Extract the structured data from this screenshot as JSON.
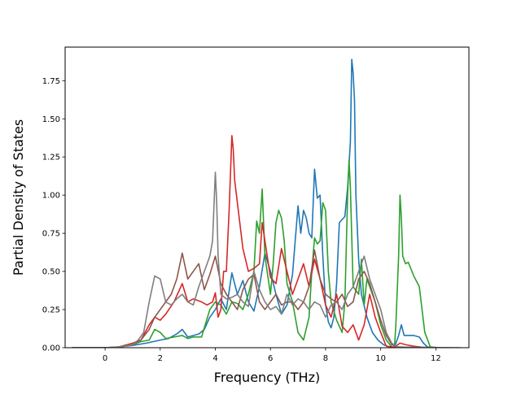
{
  "chart_data": {
    "type": "line",
    "title": "",
    "xlabel": "Frequency (THz)",
    "ylabel": "Partial Density of States",
    "xlim": [
      -1.45,
      13.2
    ],
    "ylim": [
      0,
      1.97
    ],
    "xticks": [
      0,
      2,
      4,
      6,
      8,
      10,
      12
    ],
    "yticks": [
      0.0,
      0.25,
      0.5,
      0.75,
      1.0,
      1.25,
      1.5,
      1.75
    ],
    "grid": false,
    "legend": null,
    "series": [
      {
        "color": "#1f77b4",
        "points": [
          [
            -1.2,
            0
          ],
          [
            0,
            0
          ],
          [
            0.5,
            0.005
          ],
          [
            1.0,
            0.015
          ],
          [
            1.5,
            0.03
          ],
          [
            2.0,
            0.05
          ],
          [
            2.3,
            0.06
          ],
          [
            2.6,
            0.09
          ],
          [
            2.8,
            0.12
          ],
          [
            3.0,
            0.07
          ],
          [
            3.2,
            0.08
          ],
          [
            3.4,
            0.09
          ],
          [
            3.6,
            0.12
          ],
          [
            3.8,
            0.2
          ],
          [
            4.0,
            0.25
          ],
          [
            4.2,
            0.32
          ],
          [
            4.4,
            0.25
          ],
          [
            4.6,
            0.49
          ],
          [
            4.8,
            0.35
          ],
          [
            5.0,
            0.44
          ],
          [
            5.2,
            0.3
          ],
          [
            5.4,
            0.24
          ],
          [
            5.6,
            0.4
          ],
          [
            5.8,
            0.62
          ],
          [
            6.0,
            0.5
          ],
          [
            6.2,
            0.35
          ],
          [
            6.4,
            0.22
          ],
          [
            6.6,
            0.28
          ],
          [
            6.8,
            0.48
          ],
          [
            7.0,
            0.93
          ],
          [
            7.1,
            0.75
          ],
          [
            7.2,
            0.9
          ],
          [
            7.3,
            0.85
          ],
          [
            7.4,
            0.75
          ],
          [
            7.5,
            0.72
          ],
          [
            7.6,
            1.17
          ],
          [
            7.7,
            0.98
          ],
          [
            7.8,
            1.0
          ],
          [
            7.9,
            0.6
          ],
          [
            8.0,
            0.28
          ],
          [
            8.1,
            0.17
          ],
          [
            8.2,
            0.13
          ],
          [
            8.3,
            0.2
          ],
          [
            8.4,
            0.42
          ],
          [
            8.5,
            0.82
          ],
          [
            8.6,
            0.84
          ],
          [
            8.7,
            0.86
          ],
          [
            8.8,
            1.05
          ],
          [
            8.9,
            1.35
          ],
          [
            8.95,
            1.89
          ],
          [
            9.0,
            1.8
          ],
          [
            9.05,
            1.62
          ],
          [
            9.1,
            1.0
          ],
          [
            9.2,
            0.58
          ],
          [
            9.3,
            0.35
          ],
          [
            9.5,
            0.2
          ],
          [
            9.7,
            0.1
          ],
          [
            9.9,
            0.05
          ],
          [
            10.1,
            0.02
          ],
          [
            10.3,
            0.005
          ],
          [
            10.5,
            0.003
          ],
          [
            10.65,
            0.08
          ],
          [
            10.75,
            0.15
          ],
          [
            10.85,
            0.08
          ],
          [
            11.0,
            0.08
          ],
          [
            11.2,
            0.08
          ],
          [
            11.4,
            0.07
          ],
          [
            11.55,
            0.03
          ],
          [
            11.7,
            0.005
          ],
          [
            12.1,
            0
          ]
        ]
      },
      {
        "color": "#2ca02c",
        "points": [
          [
            -1.2,
            0
          ],
          [
            0,
            0
          ],
          [
            0.5,
            0.003
          ],
          [
            1.0,
            0.02
          ],
          [
            1.3,
            0.04
          ],
          [
            1.6,
            0.05
          ],
          [
            1.8,
            0.12
          ],
          [
            2.0,
            0.1
          ],
          [
            2.2,
            0.06
          ],
          [
            2.5,
            0.07
          ],
          [
            2.8,
            0.08
          ],
          [
            3.0,
            0.06
          ],
          [
            3.2,
            0.07
          ],
          [
            3.5,
            0.07
          ],
          [
            3.8,
            0.25
          ],
          [
            4.0,
            0.3
          ],
          [
            4.2,
            0.28
          ],
          [
            4.4,
            0.22
          ],
          [
            4.6,
            0.3
          ],
          [
            4.8,
            0.29
          ],
          [
            5.0,
            0.25
          ],
          [
            5.2,
            0.35
          ],
          [
            5.4,
            0.5
          ],
          [
            5.5,
            0.83
          ],
          [
            5.6,
            0.75
          ],
          [
            5.7,
            1.04
          ],
          [
            5.8,
            0.6
          ],
          [
            6.0,
            0.35
          ],
          [
            6.1,
            0.55
          ],
          [
            6.2,
            0.82
          ],
          [
            6.3,
            0.9
          ],
          [
            6.4,
            0.85
          ],
          [
            6.5,
            0.7
          ],
          [
            6.6,
            0.42
          ],
          [
            6.8,
            0.3
          ],
          [
            7.0,
            0.1
          ],
          [
            7.2,
            0.05
          ],
          [
            7.4,
            0.2
          ],
          [
            7.5,
            0.5
          ],
          [
            7.6,
            0.72
          ],
          [
            7.7,
            0.68
          ],
          [
            7.8,
            0.7
          ],
          [
            7.9,
            0.95
          ],
          [
            8.0,
            0.9
          ],
          [
            8.1,
            0.5
          ],
          [
            8.2,
            0.3
          ],
          [
            8.4,
            0.18
          ],
          [
            8.6,
            0.1
          ],
          [
            8.7,
            0.3
          ],
          [
            8.8,
            1.0
          ],
          [
            8.85,
            1.23
          ],
          [
            8.9,
            1.05
          ],
          [
            9.0,
            0.4
          ],
          [
            9.2,
            0.35
          ],
          [
            9.3,
            0.58
          ],
          [
            9.4,
            0.28
          ],
          [
            9.5,
            0.45
          ],
          [
            9.6,
            0.4
          ],
          [
            9.8,
            0.3
          ],
          [
            10.0,
            0.15
          ],
          [
            10.2,
            0.05
          ],
          [
            10.4,
            0.005
          ],
          [
            10.5,
            0.003
          ],
          [
            10.55,
            0.15
          ],
          [
            10.65,
            0.6
          ],
          [
            10.7,
            1.0
          ],
          [
            10.75,
            0.85
          ],
          [
            10.8,
            0.6
          ],
          [
            10.9,
            0.55
          ],
          [
            11.0,
            0.56
          ],
          [
            11.2,
            0.47
          ],
          [
            11.4,
            0.4
          ],
          [
            11.5,
            0.25
          ],
          [
            11.6,
            0.1
          ],
          [
            11.8,
            0.005
          ],
          [
            12.1,
            0
          ]
        ]
      },
      {
        "color": "#d62728",
        "points": [
          [
            -1.2,
            0
          ],
          [
            0,
            0
          ],
          [
            0.5,
            0.005
          ],
          [
            1.0,
            0.03
          ],
          [
            1.3,
            0.05
          ],
          [
            1.6,
            0.15
          ],
          [
            1.8,
            0.2
          ],
          [
            2.0,
            0.18
          ],
          [
            2.2,
            0.22
          ],
          [
            2.5,
            0.3
          ],
          [
            2.8,
            0.42
          ],
          [
            3.0,
            0.3
          ],
          [
            3.2,
            0.32
          ],
          [
            3.5,
            0.3
          ],
          [
            3.7,
            0.28
          ],
          [
            3.9,
            0.3
          ],
          [
            4.0,
            0.36
          ],
          [
            4.1,
            0.2
          ],
          [
            4.2,
            0.25
          ],
          [
            4.3,
            0.5
          ],
          [
            4.4,
            0.5
          ],
          [
            4.5,
            0.9
          ],
          [
            4.6,
            1.39
          ],
          [
            4.65,
            1.3
          ],
          [
            4.7,
            1.1
          ],
          [
            4.8,
            0.95
          ],
          [
            5.0,
            0.65
          ],
          [
            5.2,
            0.5
          ],
          [
            5.4,
            0.52
          ],
          [
            5.6,
            0.55
          ],
          [
            5.7,
            0.82
          ],
          [
            5.8,
            0.7
          ],
          [
            6.0,
            0.46
          ],
          [
            6.2,
            0.42
          ],
          [
            6.4,
            0.65
          ],
          [
            6.6,
            0.5
          ],
          [
            6.8,
            0.35
          ],
          [
            7.0,
            0.45
          ],
          [
            7.2,
            0.55
          ],
          [
            7.4,
            0.4
          ],
          [
            7.6,
            0.58
          ],
          [
            7.8,
            0.45
          ],
          [
            8.0,
            0.28
          ],
          [
            8.2,
            0.2
          ],
          [
            8.4,
            0.35
          ],
          [
            8.6,
            0.14
          ],
          [
            8.8,
            0.1
          ],
          [
            9.0,
            0.15
          ],
          [
            9.2,
            0.05
          ],
          [
            9.4,
            0.15
          ],
          [
            9.6,
            0.35
          ],
          [
            9.8,
            0.2
          ],
          [
            10.0,
            0.1
          ],
          [
            10.2,
            0.01
          ],
          [
            10.5,
            0.003
          ],
          [
            10.7,
            0.03
          ],
          [
            10.9,
            0.02
          ],
          [
            11.2,
            0.01
          ],
          [
            11.5,
            0.003
          ],
          [
            12.1,
            0
          ]
        ]
      },
      {
        "color": "#8c564b",
        "points": [
          [
            -1.2,
            0
          ],
          [
            0,
            0
          ],
          [
            0.5,
            0.005
          ],
          [
            1.0,
            0.02
          ],
          [
            1.3,
            0.05
          ],
          [
            1.6,
            0.12
          ],
          [
            1.8,
            0.2
          ],
          [
            2.0,
            0.25
          ],
          [
            2.2,
            0.3
          ],
          [
            2.4,
            0.35
          ],
          [
            2.6,
            0.45
          ],
          [
            2.8,
            0.62
          ],
          [
            3.0,
            0.45
          ],
          [
            3.2,
            0.5
          ],
          [
            3.4,
            0.55
          ],
          [
            3.6,
            0.38
          ],
          [
            3.8,
            0.48
          ],
          [
            4.0,
            0.6
          ],
          [
            4.2,
            0.42
          ],
          [
            4.4,
            0.35
          ],
          [
            4.6,
            0.3
          ],
          [
            4.8,
            0.25
          ],
          [
            5.0,
            0.38
          ],
          [
            5.2,
            0.45
          ],
          [
            5.4,
            0.48
          ],
          [
            5.6,
            0.3
          ],
          [
            5.8,
            0.25
          ],
          [
            6.0,
            0.3
          ],
          [
            6.2,
            0.35
          ],
          [
            6.4,
            0.28
          ],
          [
            6.6,
            0.3
          ],
          [
            6.8,
            0.3
          ],
          [
            7.0,
            0.25
          ],
          [
            7.2,
            0.3
          ],
          [
            7.4,
            0.4
          ],
          [
            7.6,
            0.64
          ],
          [
            7.8,
            0.45
          ],
          [
            8.0,
            0.35
          ],
          [
            8.2,
            0.32
          ],
          [
            8.4,
            0.3
          ],
          [
            8.6,
            0.35
          ],
          [
            8.8,
            0.27
          ],
          [
            9.0,
            0.3
          ],
          [
            9.2,
            0.45
          ],
          [
            9.4,
            0.5
          ],
          [
            9.6,
            0.42
          ],
          [
            9.8,
            0.3
          ],
          [
            10.0,
            0.18
          ],
          [
            10.2,
            0.08
          ],
          [
            10.4,
            0.02
          ],
          [
            10.6,
            0.005
          ],
          [
            11.0,
            0.003
          ],
          [
            12.1,
            0
          ]
        ]
      },
      {
        "color": "#7f7f7f",
        "points": [
          [
            -1.2,
            0
          ],
          [
            0,
            0
          ],
          [
            0.5,
            0.005
          ],
          [
            1.0,
            0.02
          ],
          [
            1.2,
            0.05
          ],
          [
            1.4,
            0.1
          ],
          [
            1.6,
            0.3
          ],
          [
            1.8,
            0.47
          ],
          [
            2.0,
            0.45
          ],
          [
            2.2,
            0.3
          ],
          [
            2.4,
            0.28
          ],
          [
            2.6,
            0.32
          ],
          [
            2.8,
            0.35
          ],
          [
            3.0,
            0.3
          ],
          [
            3.2,
            0.28
          ],
          [
            3.4,
            0.4
          ],
          [
            3.6,
            0.5
          ],
          [
            3.8,
            0.6
          ],
          [
            3.9,
            0.7
          ],
          [
            4.0,
            1.15
          ],
          [
            4.05,
            0.95
          ],
          [
            4.1,
            0.6
          ],
          [
            4.2,
            0.35
          ],
          [
            4.4,
            0.32
          ],
          [
            4.6,
            0.33
          ],
          [
            4.8,
            0.35
          ],
          [
            5.0,
            0.3
          ],
          [
            5.2,
            0.27
          ],
          [
            5.4,
            0.5
          ],
          [
            5.6,
            0.38
          ],
          [
            5.8,
            0.3
          ],
          [
            6.0,
            0.25
          ],
          [
            6.2,
            0.27
          ],
          [
            6.4,
            0.22
          ],
          [
            6.6,
            0.35
          ],
          [
            6.8,
            0.28
          ],
          [
            7.0,
            0.32
          ],
          [
            7.2,
            0.3
          ],
          [
            7.4,
            0.25
          ],
          [
            7.6,
            0.3
          ],
          [
            7.8,
            0.28
          ],
          [
            8.0,
            0.2
          ],
          [
            8.2,
            0.28
          ],
          [
            8.4,
            0.3
          ],
          [
            8.6,
            0.25
          ],
          [
            8.8,
            0.35
          ],
          [
            9.0,
            0.4
          ],
          [
            9.2,
            0.5
          ],
          [
            9.4,
            0.6
          ],
          [
            9.6,
            0.45
          ],
          [
            9.8,
            0.35
          ],
          [
            10.0,
            0.25
          ],
          [
            10.2,
            0.1
          ],
          [
            10.4,
            0.03
          ],
          [
            10.6,
            0.005
          ],
          [
            11.0,
            0.003
          ],
          [
            12.9,
            0
          ]
        ]
      }
    ]
  }
}
